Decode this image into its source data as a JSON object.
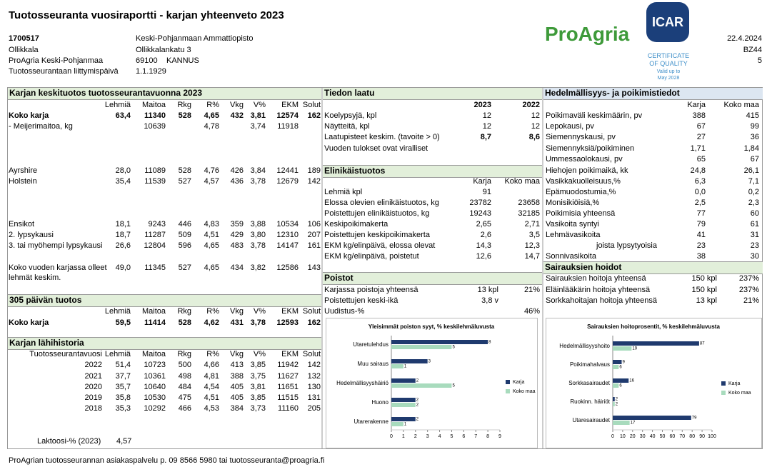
{
  "header": {
    "title": "Tuotosseuranta vuosiraportti - karjan yhteenveto 2023",
    "farm_id": "1700517",
    "place": "Ollikkala",
    "region": "ProAgria Keski-Pohjanmaa",
    "join_label": "Tuotosseurantaan liittymispäivä",
    "owner": "Keski-Pohjanmaan Ammattiopisto",
    "street": "Ollikkalankatu 3",
    "postcode": "69100",
    "city": "KANNUS",
    "join_date": "1.1.1929",
    "date": "22.4.2024",
    "code": "BZ44",
    "page": "5"
  },
  "logos": {
    "proagria": "ProAgria",
    "icar": "ICAR",
    "cert_1": "CERTIFICATE",
    "cert_2": "OF QUALITY",
    "valid_1": "Valid up to",
    "valid_2": "May 2028"
  },
  "avg_yield": {
    "title": "Karjan keskituotos tuotosseurantavuonna 2023",
    "columns": [
      "Lehmiä",
      "Maitoa",
      "Rkg",
      "R%",
      "Vkg",
      "V%",
      "EKM",
      "Solut"
    ],
    "rows": [
      {
        "label": "Koko karja",
        "cells": [
          "63,4",
          "11340",
          "528",
          "4,65",
          "432",
          "3,81",
          "12574",
          "162"
        ]
      },
      {
        "label": "- Meijerimaitoa, kg",
        "cells": [
          null,
          "10639",
          null,
          "4,78",
          null,
          "3,74",
          "11918",
          null
        ]
      },
      {
        "label": "Ayrshire",
        "cells": [
          "28,0",
          "11089",
          "528",
          "4,76",
          "426",
          "3,84",
          "12441",
          "189"
        ]
      },
      {
        "label": "Holstein",
        "cells": [
          "35,4",
          "11539",
          "527",
          "4,57",
          "436",
          "3,78",
          "12679",
          "142"
        ]
      },
      {
        "label": "Ensikot",
        "cells": [
          "18,1",
          "9243",
          "446",
          "4,83",
          "359",
          "3,88",
          "10534",
          "106"
        ]
      },
      {
        "label": "2. lypsykausi",
        "cells": [
          "18,7",
          "11287",
          "509",
          "4,51",
          "429",
          "3,80",
          "12310",
          "207"
        ]
      },
      {
        "label": "3. tai myöhempi lypsykausi",
        "cells": [
          "26,6",
          "12804",
          "596",
          "4,65",
          "483",
          "3,78",
          "14147",
          "161"
        ]
      },
      {
        "label": "Koko vuoden karjassa olleet lehmät keskim.",
        "cells": [
          "49,0",
          "11345",
          "527",
          "4,65",
          "434",
          "3,82",
          "12586",
          "143"
        ]
      }
    ]
  },
  "yield_305": {
    "title": "305 päivän tuotos",
    "columns": [
      "Lehmiä",
      "Maitoa",
      "Rkg",
      "R%",
      "Vkg",
      "V%",
      "EKM",
      "Solut"
    ],
    "rows": [
      {
        "label": "Koko karja",
        "cells": [
          "59,5",
          "11414",
          "528",
          "4,62",
          "431",
          "3,78",
          "12593",
          "162"
        ]
      }
    ]
  },
  "history": {
    "title": "Karjan lähihistoria",
    "columns": [
      "Tuotosseurantavuosi",
      "Lehmiä",
      "Maitoa",
      "Rkg",
      "R%",
      "Vkg",
      "V%",
      "EKM",
      "Solut"
    ],
    "rows": [
      {
        "cells": [
          "2022",
          "51,4",
          "10723",
          "500",
          "4,66",
          "413",
          "3,85",
          "11942",
          "142"
        ]
      },
      {
        "cells": [
          "2021",
          "37,7",
          "10361",
          "498",
          "4,81",
          "388",
          "3,75",
          "11627",
          "132"
        ]
      },
      {
        "cells": [
          "2020",
          "35,7",
          "10640",
          "484",
          "4,54",
          "405",
          "3,81",
          "11651",
          "130"
        ]
      },
      {
        "cells": [
          "2019",
          "35,8",
          "10530",
          "475",
          "4,51",
          "405",
          "3,85",
          "11515",
          "131"
        ]
      },
      {
        "cells": [
          "2018",
          "35,3",
          "10292",
          "466",
          "4,53",
          "384",
          "3,73",
          "11160",
          "205"
        ]
      }
    ],
    "lactose_label": "Laktoosi-% (2023)",
    "lactose_value": "4,57"
  },
  "quality": {
    "title": "Tiedon laatu",
    "columns": [
      "2023",
      "2022"
    ],
    "rows": [
      {
        "label": "Koelypsyjä, kpl",
        "cells": [
          "12",
          "12"
        ]
      },
      {
        "label": "Näytteitä, kpl",
        "cells": [
          "12",
          "12"
        ]
      },
      {
        "label": "Laatupisteet keskim. (tavoite > 0)",
        "cells": [
          "8,7",
          "8,6"
        ]
      },
      {
        "label": "Vuoden tulokset ovat viralliset",
        "cells": []
      }
    ]
  },
  "lifetime": {
    "title": "Elinikäistuotos",
    "columns": [
      "Karja",
      "Koko maa"
    ],
    "rows": [
      {
        "label": "Lehmiä kpl",
        "cells": [
          "91",
          null
        ]
      },
      {
        "label": "Elossa olevien elinikäistuotos, kg",
        "cells": [
          "23782",
          "23658"
        ]
      },
      {
        "label": "Poistettujen elinikäistuotos, kg",
        "cells": [
          "19243",
          "32185"
        ]
      },
      {
        "label": "Keskipoikimakerta",
        "cells": [
          "2,65",
          "2,71"
        ]
      },
      {
        "label": "Poistettujen keskipoikimakerta",
        "cells": [
          "2,6",
          "3,5"
        ]
      },
      {
        "label": "EKM kg/elinpäivä, elossa olevat",
        "cells": [
          "14,3",
          "12,3"
        ]
      },
      {
        "label": "EKM kg/elinpäivä, poistetut",
        "cells": [
          "12,6",
          "14,7"
        ]
      }
    ]
  },
  "removals": {
    "title": "Poistot",
    "rows": [
      {
        "label": "Karjassa poistoja yhteensä",
        "cells": [
          "13 kpl",
          "21%"
        ]
      },
      {
        "label": "Poistettujen keski-ikä",
        "cells": [
          "3,8 v"
        ]
      },
      {
        "label": "Uudistus-%",
        "cells": [
          null,
          "46%"
        ]
      }
    ]
  },
  "fertility": {
    "title": "Hedelmällisyys- ja poikimistiedot",
    "columns": [
      "Karja",
      "Koko maa"
    ],
    "rows": [
      {
        "label": "Poikimaväli keskimäärin, pv",
        "cells": [
          "388",
          "415"
        ]
      },
      {
        "label": "Lepokausi, pv",
        "cells": [
          "67",
          "99"
        ]
      },
      {
        "label": "Siemennyskausi, pv",
        "cells": [
          "27",
          "36"
        ]
      },
      {
        "label": "Siemennyksiä/poikiminen",
        "cells": [
          "1,71",
          "1,84"
        ]
      },
      {
        "label": "Ummessaolokausi, pv",
        "cells": [
          "65",
          "67"
        ]
      },
      {
        "label": "Hiehojen poikimaikä, kk",
        "cells": [
          "24,8",
          "26,1"
        ]
      },
      {
        "label": "Vasikkakuolleisuus,%",
        "cells": [
          "6,3",
          "7,1"
        ]
      },
      {
        "label": "Epämuodostumia,%",
        "cells": [
          "0,0",
          "0,2"
        ]
      },
      {
        "label": "Monisikiöisiä,%",
        "cells": [
          "2,5",
          "2,3"
        ]
      },
      {
        "label": "Poikimisia yhteensä",
        "cells": [
          "77",
          "60"
        ]
      },
      {
        "label": "Vasikoita syntyi",
        "cells": [
          "79",
          "61"
        ]
      },
      {
        "label": "Lehmävasikoita",
        "cells": [
          "41",
          "31"
        ]
      },
      {
        "label": "joista lypsytyoisia",
        "cells": [
          "23",
          "23"
        ]
      },
      {
        "label": "Sonnivasikoita",
        "cells": [
          "38",
          "30"
        ]
      }
    ]
  },
  "care": {
    "title": "Sairauksien hoidot",
    "rows": [
      {
        "label": "Sairauksien hoitoja yhteensä",
        "cells": [
          "150 kpl",
          "237%"
        ]
      },
      {
        "label": "Eläinlääkärin hoitoja yhteensä",
        "cells": [
          "150 kpl",
          "237%"
        ]
      },
      {
        "label": "Sorkkahoitajan hoitoja yhteensä",
        "cells": [
          "13 kpl",
          "21%"
        ]
      }
    ]
  },
  "charts": [
    {
      "type": "bar",
      "title": "Yleisimmät poiston syyt, % keskilehmäluvusta",
      "categories": [
        "Utaretulehdus",
        "Muu sairaus",
        "Hedelmällisyyshäiriö",
        "Huono",
        "Utarerakenne"
      ],
      "series": [
        {
          "name": "Karja",
          "color": "#1f3a6e",
          "values": [
            8,
            3,
            2,
            2,
            2
          ]
        },
        {
          "name": "Koko maa",
          "color": "#a8dbbd",
          "values": [
            5,
            1,
            5,
            2,
            1
          ]
        }
      ],
      "xlim": [
        0,
        9
      ],
      "xticks": [
        0,
        1,
        2,
        3,
        4,
        5,
        6,
        7,
        8,
        9
      ]
    },
    {
      "type": "bar",
      "title": "Sairauksien hoitoprosentit, % keskilehmäluvusta",
      "categories": [
        "Hedelmällisyyshoito",
        "Poikimahalvaus",
        "Sorkkasairaudet",
        "Ruokinn. häiriöt",
        "Utaresairaudet"
      ],
      "series": [
        {
          "name": "Karja",
          "color": "#1f3a6e",
          "values": [
            87,
            9,
            16,
            2,
            79
          ]
        },
        {
          "name": "Koko maa",
          "color": "#a8dbbd",
          "values": [
            19,
            6,
            6,
            2,
            17
          ]
        }
      ],
      "xlim": [
        0,
        100
      ],
      "xticks": [
        0,
        10,
        20,
        30,
        40,
        50,
        60,
        70,
        80,
        90,
        100
      ]
    }
  ],
  "footer": "ProAgrian tuotosseurannan asiakaspalvelu p. 09 8566 5980 tai tuotosseuranta@proagria.fi"
}
